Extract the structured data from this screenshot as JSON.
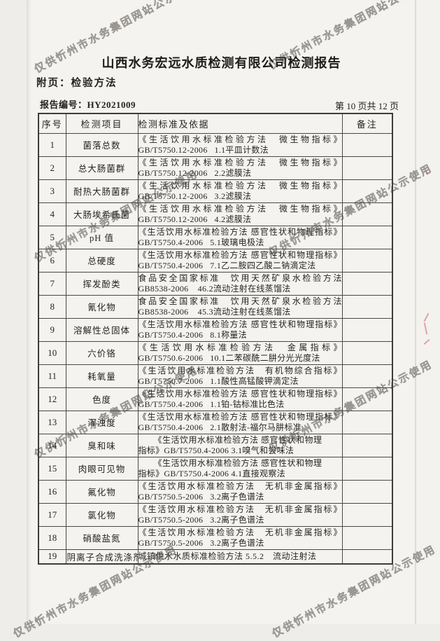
{
  "watermark": {
    "text": "仅供忻州市水务集团网站公示使用"
  },
  "header": {
    "title": "山西水务宏远水质检测有限公司检测报告",
    "subtitle": "附页：检验方法",
    "report_no": "报告编号：HY2021009",
    "page_info": "第 10 页共 12 页"
  },
  "table": {
    "columns": [
      "序号",
      "检测项目",
      "检测标准及依据",
      "备注"
    ],
    "rows": [
      {
        "no": "1",
        "item": "菌落总数",
        "line1": "《生活饮用水标准检验方法　微生物指标》",
        "line2": "GB/T5750.12-2006   1.1平皿计数法",
        "l1_style": "justify",
        "remark": ""
      },
      {
        "no": "2",
        "item": "总大肠菌群",
        "line1": "《生活饮用水标准检验方法　微生物指标》",
        "line2": "GB/T5750.12-2006   2.2滤膜法",
        "l1_style": "justify",
        "remark": ""
      },
      {
        "no": "3",
        "item": "耐热大肠菌群",
        "line1": "《生活饮用水标准检验方法　微生物指标》",
        "line2": "GB/T5750.12-2006   3.2滤膜法",
        "l1_style": "justify",
        "remark": ""
      },
      {
        "no": "4",
        "item": "大肠埃希氏菌",
        "line1": "《生活饮用水标准检验方法　微生物指标》",
        "line2": "GB/T5750.12-2006   4.2滤膜法",
        "l1_style": "justify",
        "remark": ""
      },
      {
        "no": "5",
        "item": "pH 值",
        "line1": "《生活饮用水标准检验方法 感官性状和物理指标》",
        "line2": "GB/T5750.4-2006   5.1玻璃电极法",
        "l1_style": "justify",
        "remark": ""
      },
      {
        "no": "6",
        "item": "总硬度",
        "line1": "《生活饮用水标准检验方法 感官性状和物理指标》",
        "line2": "GB/T5750.4-2006   7.1乙二胺四乙酸二钠滴定法",
        "l1_style": "justify",
        "remark": ""
      },
      {
        "no": "7",
        "item": "挥发酚类",
        "line1": "食品安全国家标准　饮用天然矿泉水检验方法",
        "line2": "GB8538-2006    46.2流动注射在线蒸馏法",
        "l1_style": "justify",
        "remark": ""
      },
      {
        "no": "8",
        "item": "氰化物",
        "line1": "食品安全国家标准　饮用天然矿泉水检验方法",
        "line2": "GB8538-2006    45.3流动注射在线蒸馏法",
        "l1_style": "justify",
        "remark": ""
      },
      {
        "no": "9",
        "item": "溶解性总固体",
        "line1": "《生活饮用水标准检验方法 感官性状和物理指标》",
        "line2": "GB/T5750.4-2006   8.1称量法",
        "l1_style": "justify",
        "remark": ""
      },
      {
        "no": "10",
        "item": "六价铬",
        "line1": "《生活饮用水标准检验方法　金属指标》",
        "line2": "GB/T5750.6-2006   10.1二苯碳酰二肼分光光度法",
        "l1_style": "justify",
        "remark": ""
      },
      {
        "no": "11",
        "item": "耗氧量",
        "line1": "《生活饮用水标准检验方法　有机物综合指标》",
        "line2": "GB/T5750.7-2006   1.1酸性高锰酸钾滴定法",
        "l1_style": "justify",
        "remark": ""
      },
      {
        "no": "12",
        "item": "色度",
        "line1": "《生活饮用水标准检验方法 感官性状和物理指标》",
        "line2": "GB/T5750.4-2006   1.1铂-钴标准比色法",
        "l1_style": "justify",
        "remark": ""
      },
      {
        "no": "13",
        "item": "浑浊度",
        "line1": "《生活饮用水标准检验方法 感官性状和物理指标》",
        "line2": "GB/T5750.4-2006   2.1散射法-福尔马肼标准",
        "l1_style": "justify",
        "remark": ""
      },
      {
        "no": "14",
        "item": "臭和味",
        "line1": "《生活饮用水标准检验方法 感官性状和物理",
        "line2": "指标》GB/T5750.4-2006 3.1嗅气和尝味法",
        "l1_style": "indent",
        "remark": ""
      },
      {
        "no": "15",
        "item": "肉眼可见物",
        "line1": "《生活饮用水标准检验方法 感官性状和物理",
        "line2": "指标》GB/T5750.4-2006 4.1直接观察法",
        "l1_style": "indent",
        "remark": ""
      },
      {
        "no": "16",
        "item": "氟化物",
        "line1": "《生活饮用水标准检验方法　无机非金属指标》",
        "line2": "GB/T5750.5-2006   3.2离子色谱法",
        "l1_style": "justify",
        "remark": ""
      },
      {
        "no": "17",
        "item": "氯化物",
        "line1": "《生活饮用水标准检验方法　无机非金属指标》",
        "line2": "GB/T5750.5-2006   3.2离子色谱法",
        "l1_style": "justify",
        "remark": ""
      },
      {
        "no": "18",
        "item": "硝酸盐氮",
        "line1": "《生活饮用水标准检验方法　无机非金属指标》",
        "line2": "GB/T5750.5-2006   3.2离子色谱法",
        "l1_style": "justify",
        "remark": ""
      },
      {
        "no": "19",
        "item": "阴离子合成洗涤剂",
        "line1": "城镇供水水质标准检验方法 5.5.2　流动注射法",
        "line2": "",
        "l1_style": "plain",
        "remark": ""
      }
    ]
  }
}
